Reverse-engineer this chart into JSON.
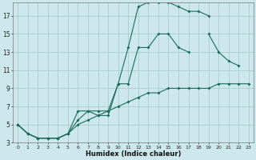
{
  "xlabel": "Humidex (Indice chaleur)",
  "bg_color": "#cde8ec",
  "grid_color": "#aacccc",
  "line_color": "#1a6b5a",
  "xlim": [
    -0.5,
    23.5
  ],
  "ylim": [
    3,
    18.5
  ],
  "xticks": [
    0,
    1,
    2,
    3,
    4,
    5,
    6,
    7,
    8,
    9,
    10,
    11,
    12,
    13,
    14,
    15,
    16,
    17,
    18,
    19,
    20,
    21,
    22,
    23
  ],
  "yticks": [
    3,
    5,
    7,
    9,
    11,
    13,
    15,
    17
  ],
  "line1_x": [
    0,
    1,
    2,
    3,
    4,
    5,
    6,
    7,
    8,
    9,
    10,
    11,
    12,
    13,
    14,
    15,
    16,
    17,
    18,
    19,
    20,
    21,
    22,
    23
  ],
  "line1_y": [
    5.0,
    4.0,
    3.5,
    3.5,
    3.5,
    4.0,
    6.5,
    6.5,
    6.5,
    6.5,
    9.5,
    13.5,
    18.0,
    18.5,
    18.5,
    18.5,
    18.0,
    17.5,
    17.5,
    17.0,
    null,
    null,
    null,
    null
  ],
  "line2_x": [
    0,
    1,
    2,
    3,
    4,
    5,
    6,
    7,
    8,
    9,
    10,
    11,
    12,
    13,
    14,
    15,
    16,
    17,
    18,
    19,
    20,
    21,
    22,
    23
  ],
  "line2_y": [
    5.0,
    4.0,
    3.5,
    3.5,
    3.5,
    4.0,
    5.5,
    6.5,
    6.0,
    6.0,
    9.5,
    9.5,
    13.5,
    13.5,
    15.0,
    15.0,
    13.5,
    13.0,
    null,
    15.0,
    13.0,
    12.0,
    11.5,
    null
  ],
  "line3_x": [
    0,
    1,
    2,
    3,
    4,
    5,
    6,
    7,
    8,
    9,
    10,
    11,
    12,
    13,
    14,
    15,
    16,
    17,
    18,
    19,
    20,
    21,
    22,
    23
  ],
  "line3_y": [
    5.0,
    4.0,
    3.5,
    3.5,
    3.5,
    4.0,
    5.0,
    5.5,
    6.0,
    6.5,
    7.0,
    7.5,
    8.0,
    8.5,
    8.5,
    9.0,
    9.0,
    9.0,
    9.0,
    9.0,
    9.5,
    9.5,
    9.5,
    9.5
  ]
}
